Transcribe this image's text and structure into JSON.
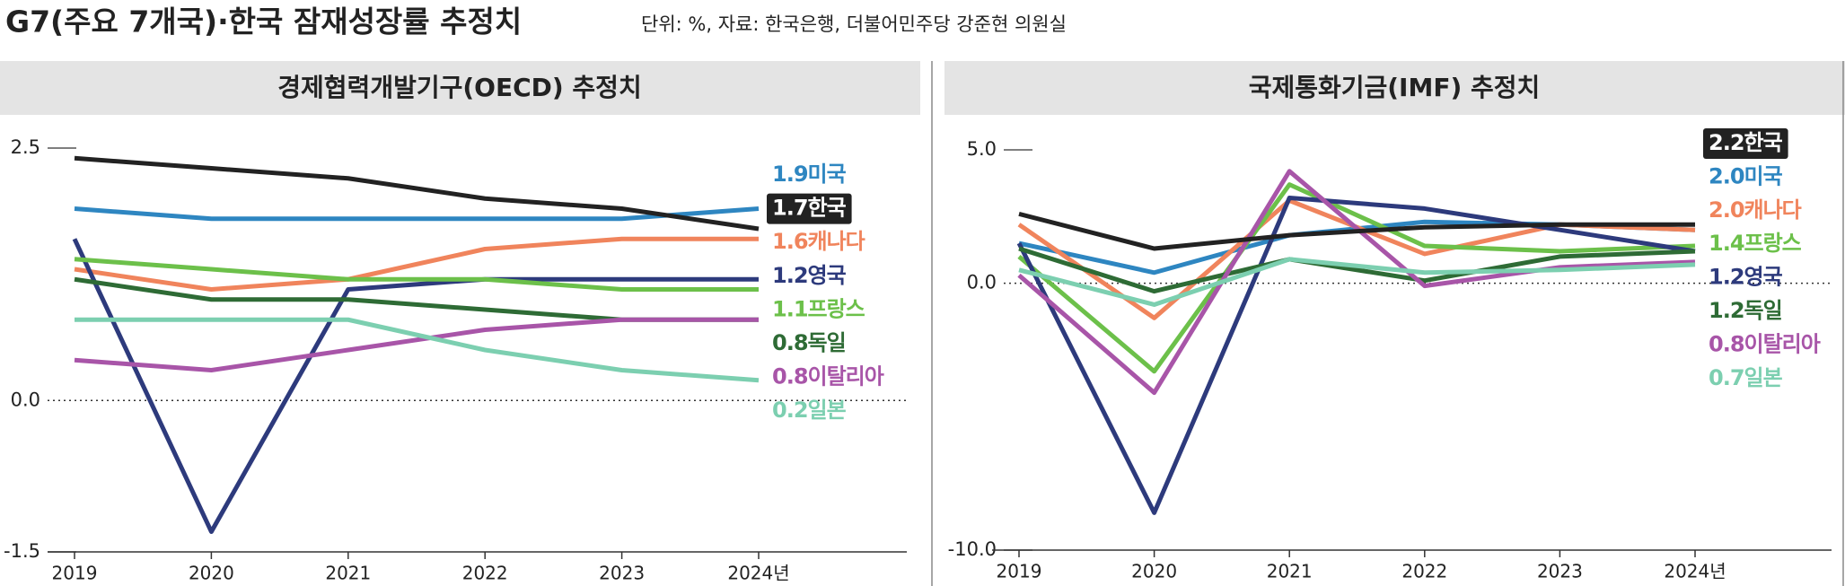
{
  "header": {
    "title": "G7(주요 7개국)·한국 잠재성장률 추정치",
    "subtitle": "단위: %, 자료: 한국은행, 더불어민주당 강준현 의원실"
  },
  "chart_data": [
    {
      "type": "line",
      "title": "경제협력개발기구(OECD) 추정치",
      "categories": [
        "2019",
        "2020",
        "2021",
        "2022",
        "2023",
        "2024년"
      ],
      "ylim": [
        -1.5,
        2.5
      ],
      "yticks": [
        2.5,
        {
          "value": 0,
          "label": "0.0"
        },
        -1.5
      ],
      "series": [
        {
          "name": "미국",
          "color": "#2e86c1",
          "values": [
            1.9,
            1.8,
            1.8,
            1.8,
            1.8,
            1.9
          ],
          "value_labels": [
            null,
            null,
            null,
            null,
            null,
            "1.9"
          ]
        },
        {
          "name": "한국",
          "color": "#222222",
          "highlight": true,
          "values": [
            2.4,
            2.3,
            2.2,
            2.0,
            1.9,
            1.7
          ],
          "value_labels": [
            null,
            null,
            null,
            null,
            null,
            "1.7"
          ]
        },
        {
          "name": "캐나다",
          "color": "#f0845c",
          "values": [
            1.3,
            1.1,
            1.2,
            1.5,
            1.6,
            1.6
          ],
          "value_labels": [
            null,
            null,
            null,
            null,
            null,
            "1.6"
          ]
        },
        {
          "name": "영국",
          "color": "#2d3a7c",
          "values": [
            1.6,
            -1.3,
            1.1,
            1.2,
            1.2,
            1.2
          ],
          "value_labels": [
            null,
            null,
            null,
            null,
            null,
            "1.2"
          ]
        },
        {
          "name": "프랑스",
          "color": "#6cc04a",
          "values": [
            1.4,
            1.3,
            1.2,
            1.2,
            1.1,
            1.1
          ],
          "value_labels": [
            null,
            null,
            null,
            null,
            null,
            "1.1"
          ]
        },
        {
          "name": "독일",
          "color": "#2e6b35",
          "values": [
            1.2,
            1.0,
            1.0,
            0.9,
            0.8,
            0.8
          ],
          "value_labels": [
            null,
            null,
            null,
            null,
            null,
            "0.8"
          ]
        },
        {
          "name": "이탈리아",
          "color": "#a855a8",
          "values": [
            0.4,
            0.3,
            0.5,
            0.7,
            0.8,
            0.8
          ],
          "value_labels": [
            null,
            null,
            null,
            null,
            null,
            "0.8"
          ]
        },
        {
          "name": "일본",
          "color": "#7ccfb0",
          "values": [
            0.8,
            0.8,
            0.8,
            0.5,
            0.3,
            0.2
          ],
          "value_labels": [
            null,
            null,
            null,
            null,
            null,
            "0.2"
          ]
        }
      ]
    },
    {
      "type": "line",
      "title": "국제통화기금(IMF) 추정치",
      "categories": [
        "2019",
        "2020",
        "2021",
        "2022",
        "2023",
        "2024년"
      ],
      "ylim": [
        -10,
        5
      ],
      "yticks": [
        {
          "value": 5,
          "label": "5.0"
        },
        {
          "value": 0,
          "label": "0.0"
        },
        {
          "value": -10,
          "label": "-10.0"
        }
      ],
      "series": [
        {
          "name": "한국",
          "color": "#222222",
          "highlight": true,
          "values": [
            2.6,
            1.3,
            1.8,
            2.1,
            2.2,
            2.2
          ],
          "value_labels": [
            null,
            null,
            null,
            null,
            null,
            "2.2"
          ]
        },
        {
          "name": "미국",
          "color": "#2e86c1",
          "values": [
            1.5,
            0.4,
            1.8,
            2.3,
            2.2,
            2.0
          ],
          "value_labels": [
            null,
            null,
            null,
            null,
            null,
            "2.0"
          ]
        },
        {
          "name": "캐나다",
          "color": "#f0845c",
          "values": [
            2.2,
            -1.3,
            3.1,
            1.1,
            2.2,
            2.0
          ],
          "value_labels": [
            null,
            null,
            null,
            null,
            null,
            "2.0"
          ]
        },
        {
          "name": "프랑스",
          "color": "#6cc04a",
          "values": [
            1.0,
            -3.3,
            3.7,
            1.4,
            1.2,
            1.4
          ],
          "value_labels": [
            null,
            null,
            null,
            null,
            null,
            "1.4"
          ]
        },
        {
          "name": "영국",
          "color": "#2d3a7c",
          "values": [
            1.5,
            -8.6,
            3.2,
            2.8,
            2.0,
            1.2
          ],
          "value_labels": [
            null,
            null,
            null,
            null,
            null,
            "1.2"
          ]
        },
        {
          "name": "독일",
          "color": "#2e6b35",
          "values": [
            1.3,
            -0.3,
            0.9,
            0.1,
            1.0,
            1.2
          ],
          "value_labels": [
            null,
            null,
            null,
            null,
            null,
            "1.2"
          ]
        },
        {
          "name": "이탈리아",
          "color": "#a855a8",
          "values": [
            0.3,
            -4.1,
            4.2,
            -0.1,
            0.6,
            0.8
          ],
          "value_labels": [
            null,
            null,
            null,
            null,
            null,
            "0.8"
          ]
        },
        {
          "name": "일본",
          "color": "#7ccfb0",
          "values": [
            0.5,
            -0.8,
            0.9,
            0.4,
            0.5,
            0.7
          ],
          "value_labels": [
            null,
            null,
            null,
            null,
            null,
            "0.7"
          ]
        }
      ]
    }
  ]
}
